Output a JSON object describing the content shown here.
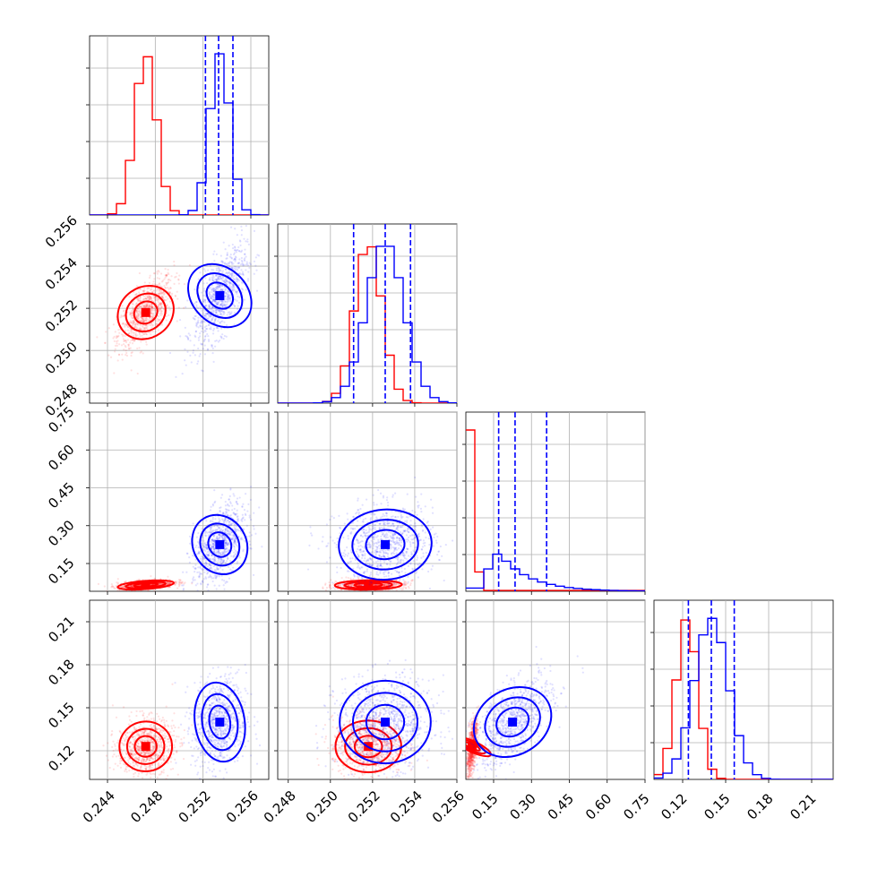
{
  "chart_data": {
    "type": "corner",
    "grid": true,
    "params": [
      {
        "range": [
          0.2425,
          0.2575
        ],
        "ticks": [
          "0.244",
          "0.248",
          "0.252",
          "0.256"
        ],
        "tick_values": [
          0.244,
          0.248,
          0.252,
          0.256
        ]
      },
      {
        "range": [
          0.2475,
          0.256
        ],
        "ticks": [
          "0.248",
          "0.250",
          "0.252",
          "0.254",
          "0.256"
        ],
        "tick_values": [
          0.248,
          0.25,
          0.252,
          0.254,
          0.256
        ]
      },
      {
        "range": [
          0.04,
          0.75
        ],
        "ticks": [
          "0.15",
          "0.30",
          "0.45",
          "0.60",
          "0.75"
        ],
        "tick_values": [
          0.15,
          0.3,
          0.45,
          0.6,
          0.75
        ]
      },
      {
        "range": [
          0.1,
          0.225
        ],
        "ticks": [
          "0.12",
          "0.15",
          "0.18",
          "0.21"
        ],
        "tick_values": [
          0.12,
          0.15,
          0.18,
          0.21
        ]
      }
    ],
    "series": [
      {
        "color": "#ff0000",
        "means": [
          0.2472,
          0.2518,
          0.065,
          0.123
        ],
        "sds": [
          0.0009,
          0.00065,
          0.008,
          0.0075
        ],
        "hist_peaks": [
          1.0,
          1.0,
          1.0,
          1.0
        ]
      },
      {
        "color": "#0000ff",
        "means": [
          0.2534,
          0.2526,
          0.225,
          0.14
        ],
        "sds": [
          0.00085,
          0.0009,
          0.06,
          0.012
        ],
        "quantiles": [
          [
            0.2522,
            0.2533,
            0.2545
          ],
          [
            0.2511,
            0.2526,
            0.2538
          ],
          [
            0.17,
            0.235,
            0.36
          ],
          [
            0.124,
            0.14,
            0.156
          ]
        ]
      }
    ]
  }
}
